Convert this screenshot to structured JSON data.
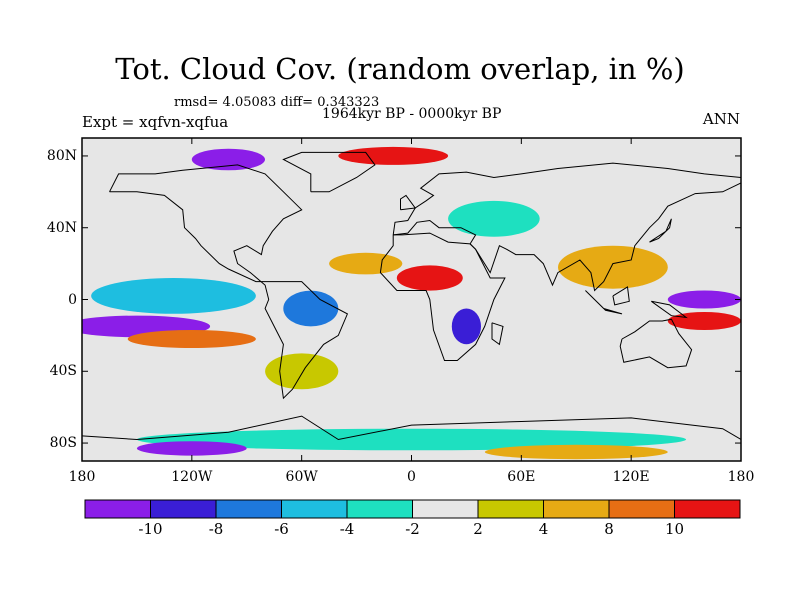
{
  "title": "Tot. Cloud Cov. (random overlap, in %)",
  "stats_line": "rmsd= 4.05083  diff= 0.343323",
  "period_line": "1964kyr BP - 0000kyr BP",
  "experiment_line": "Expt = xqfvn-xqfua",
  "season": "ANN",
  "lat_ticks": [
    {
      "lat": 80,
      "label": "80N"
    },
    {
      "lat": 40,
      "label": "40N"
    },
    {
      "lat": 0,
      "label": "0"
    },
    {
      "lat": -40,
      "label": "40S"
    },
    {
      "lat": -80,
      "label": "80S"
    }
  ],
  "lon_ticks": [
    {
      "lon": -180,
      "label": "180"
    },
    {
      "lon": -120,
      "label": "120W"
    },
    {
      "lon": -60,
      "label": "60W"
    },
    {
      "lon": 0,
      "label": "0"
    },
    {
      "lon": 60,
      "label": "60E"
    },
    {
      "lon": 120,
      "label": "120E"
    },
    {
      "lon": 180,
      "label": "180"
    }
  ],
  "colorbar": {
    "colors": [
      "#8b1ee8",
      "#3a1ed6",
      "#1e78dc",
      "#1ebee0",
      "#1ee0c0",
      "#e6e6e6",
      "#c8c800",
      "#e6aa14",
      "#e66e14",
      "#e61414"
    ],
    "labels": [
      "-10",
      "-8",
      "-6",
      "-4",
      "-2",
      "2",
      "4",
      "8",
      "10"
    ]
  },
  "map_fields": [
    {
      "lon": -130,
      "lat": 2,
      "rx": 45,
      "ry": 10,
      "level": 3
    },
    {
      "lon": -150,
      "lat": -15,
      "rx": 40,
      "ry": 6,
      "level": 0
    },
    {
      "lon": -120,
      "lat": -22,
      "rx": 35,
      "ry": 5,
      "level": 8
    },
    {
      "lon": 10,
      "lat": 12,
      "rx": 18,
      "ry": 7,
      "level": 9
    },
    {
      "lon": -25,
      "lat": 20,
      "rx": 20,
      "ry": 6,
      "level": 7
    },
    {
      "lon": 30,
      "lat": -15,
      "rx": 8,
      "ry": 10,
      "level": 1
    },
    {
      "lon": -55,
      "lat": -5,
      "rx": 15,
      "ry": 10,
      "level": 2
    },
    {
      "lon": 160,
      "lat": 0,
      "rx": 20,
      "ry": 5,
      "level": 0
    },
    {
      "lon": 160,
      "lat": -12,
      "rx": 20,
      "ry": 5,
      "level": 9
    },
    {
      "lon": 110,
      "lat": 18,
      "rx": 30,
      "ry": 12,
      "level": 7
    },
    {
      "lon": -100,
      "lat": 78,
      "rx": 20,
      "ry": 6,
      "level": 0
    },
    {
      "lon": -10,
      "lat": 80,
      "rx": 30,
      "ry": 5,
      "level": 9
    },
    {
      "lon": 0,
      "lat": -78,
      "rx": 150,
      "ry": 6,
      "level": 4
    },
    {
      "lon": -120,
      "lat": -83,
      "rx": 30,
      "ry": 4,
      "level": 0
    },
    {
      "lon": 90,
      "lat": -85,
      "rx": 50,
      "ry": 4,
      "level": 7
    },
    {
      "lon": 45,
      "lat": 45,
      "rx": 25,
      "ry": 10,
      "level": 4
    },
    {
      "lon": -60,
      "lat": -40,
      "rx": 20,
      "ry": 10,
      "level": 6
    }
  ],
  "coastlines": [
    [
      [
        -165,
        60
      ],
      [
        -160,
        70
      ],
      [
        -140,
        70
      ],
      [
        -125,
        72
      ],
      [
        -95,
        75
      ],
      [
        -80,
        70
      ],
      [
        -70,
        60
      ],
      [
        -60,
        50
      ],
      [
        -70,
        45
      ],
      [
        -76,
        38
      ],
      [
        -81,
        30
      ],
      [
        -82,
        25
      ],
      [
        -90,
        30
      ],
      [
        -97,
        27
      ],
      [
        -95,
        20
      ],
      [
        -88,
        15
      ],
      [
        -80,
        8
      ],
      [
        -78,
        0
      ],
      [
        -80,
        -5
      ],
      [
        -75,
        -15
      ],
      [
        -70,
        -25
      ],
      [
        -72,
        -40
      ],
      [
        -70,
        -55
      ],
      [
        -65,
        -50
      ],
      [
        -58,
        -38
      ],
      [
        -48,
        -25
      ],
      [
        -40,
        -20
      ],
      [
        -35,
        -8
      ],
      [
        -50,
        0
      ],
      [
        -60,
        10
      ],
      [
        -75,
        10
      ],
      [
        -85,
        10
      ],
      [
        -100,
        17
      ],
      [
        -105,
        20
      ],
      [
        -115,
        30
      ],
      [
        -118,
        34
      ],
      [
        -124,
        40
      ],
      [
        -125,
        50
      ],
      [
        -135,
        58
      ],
      [
        -150,
        60
      ],
      [
        -165,
        60
      ]
    ],
    [
      [
        -55,
        60
      ],
      [
        -45,
        60
      ],
      [
        -30,
        68
      ],
      [
        -20,
        75
      ],
      [
        -25,
        82
      ],
      [
        -60,
        82
      ],
      [
        -70,
        78
      ],
      [
        -55,
        70
      ],
      [
        -55,
        60
      ]
    ],
    [
      [
        -10,
        36
      ],
      [
        -5,
        36
      ],
      [
        10,
        37
      ],
      [
        20,
        32
      ],
      [
        32,
        31
      ],
      [
        35,
        28
      ],
      [
        43,
        12
      ],
      [
        51,
        12
      ],
      [
        45,
        0
      ],
      [
        40,
        -15
      ],
      [
        35,
        -25
      ],
      [
        25,
        -34
      ],
      [
        18,
        -34
      ],
      [
        12,
        -17
      ],
      [
        10,
        0
      ],
      [
        8,
        5
      ],
      [
        -8,
        5
      ],
      [
        -17,
        15
      ],
      [
        -16,
        22
      ],
      [
        -10,
        30
      ],
      [
        -10,
        36
      ]
    ],
    [
      [
        -10,
        36
      ],
      [
        -9,
        43
      ],
      [
        -2,
        44
      ],
      [
        2,
        51
      ],
      [
        8,
        55
      ],
      [
        12,
        58
      ],
      [
        5,
        62
      ],
      [
        15,
        70
      ],
      [
        30,
        71
      ],
      [
        45,
        68
      ],
      [
        60,
        70
      ],
      [
        80,
        73
      ],
      [
        110,
        76
      ],
      [
        140,
        73
      ],
      [
        160,
        70
      ],
      [
        180,
        68
      ],
      [
        180,
        65
      ],
      [
        170,
        60
      ],
      [
        155,
        59
      ],
      [
        140,
        52
      ],
      [
        135,
        45
      ],
      [
        130,
        40
      ],
      [
        122,
        30
      ],
      [
        120,
        22
      ],
      [
        110,
        20
      ],
      [
        105,
        10
      ],
      [
        100,
        5
      ],
      [
        98,
        15
      ],
      [
        92,
        22
      ],
      [
        80,
        15
      ],
      [
        77,
        8
      ],
      [
        72,
        20
      ],
      [
        67,
        25
      ],
      [
        57,
        25
      ],
      [
        52,
        28
      ],
      [
        48,
        30
      ],
      [
        43,
        15
      ],
      [
        35,
        28
      ],
      [
        32,
        31
      ],
      [
        35,
        36
      ],
      [
        27,
        40
      ],
      [
        20,
        40
      ],
      [
        15,
        40
      ],
      [
        10,
        44
      ],
      [
        3,
        43
      ],
      [
        -2,
        37
      ],
      [
        -10,
        36
      ]
    ],
    [
      [
        115,
        -22
      ],
      [
        122,
        -18
      ],
      [
        130,
        -12
      ],
      [
        137,
        -12
      ],
      [
        142,
        -11
      ],
      [
        146,
        -19
      ],
      [
        153,
        -28
      ],
      [
        150,
        -37
      ],
      [
        140,
        -38
      ],
      [
        130,
        -32
      ],
      [
        116,
        -35
      ],
      [
        114,
        -26
      ],
      [
        115,
        -22
      ]
    ],
    [
      [
        -6,
        50
      ],
      [
        2,
        51
      ],
      [
        -3,
        58
      ],
      [
        -6,
        56
      ],
      [
        -6,
        50
      ]
    ],
    [
      [
        130,
        32
      ],
      [
        135,
        34
      ],
      [
        141,
        40
      ],
      [
        142,
        45
      ],
      [
        139,
        38
      ],
      [
        130,
        32
      ]
    ],
    [
      [
        95,
        5
      ],
      [
        105,
        -5
      ],
      [
        115,
        -8
      ],
      [
        106,
        -6
      ],
      [
        95,
        5
      ]
    ],
    [
      [
        110,
        2
      ],
      [
        118,
        7
      ],
      [
        119,
        -1
      ],
      [
        111,
        -3
      ],
      [
        110,
        2
      ]
    ],
    [
      [
        131,
        -1
      ],
      [
        141,
        -3
      ],
      [
        150,
        -10
      ],
      [
        142,
        -9
      ],
      [
        131,
        -1
      ]
    ],
    [
      [
        44,
        -13
      ],
      [
        50,
        -15
      ],
      [
        48,
        -25
      ],
      [
        44,
        -22
      ],
      [
        44,
        -13
      ]
    ],
    [
      [
        -180,
        -76
      ],
      [
        -150,
        -78
      ],
      [
        -100,
        -74
      ],
      [
        -60,
        -65
      ],
      [
        -40,
        -78
      ],
      [
        0,
        -70
      ],
      [
        60,
        -68
      ],
      [
        120,
        -66
      ],
      [
        170,
        -72
      ],
      [
        180,
        -78
      ]
    ]
  ]
}
